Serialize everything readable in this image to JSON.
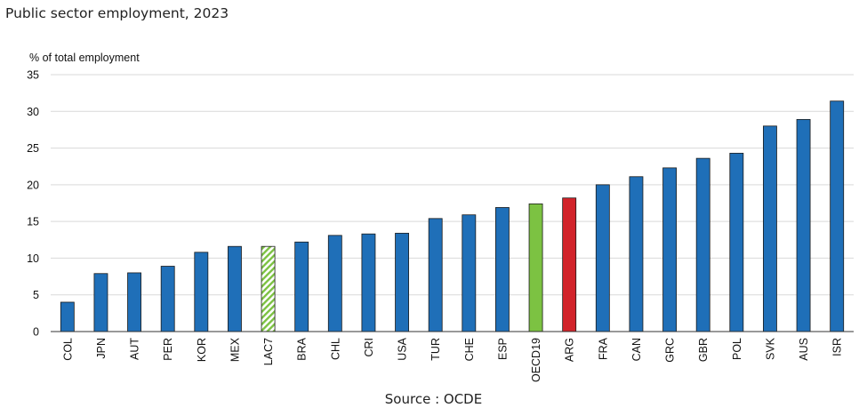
{
  "header": {
    "title": "Public sector employment, 2023"
  },
  "footer": {
    "source": "Source : OCDE"
  },
  "colors": {
    "default": "#1f6fb8",
    "oecd": "#7cc242",
    "argentina": "#d2232a",
    "lac_hatch": "#7cc242",
    "grid": "#d9d9d9"
  },
  "chart_data": {
    "type": "bar",
    "ylabel": "% of total employment",
    "ylim": [
      0,
      35
    ],
    "yticks": [
      0,
      5,
      10,
      15,
      20,
      25,
      30,
      35
    ],
    "grid": true,
    "categories": [
      "COL",
      "JPN",
      "AUT",
      "PER",
      "KOR",
      "MEX",
      "LAC7",
      "BRA",
      "CHL",
      "CRI",
      "USA",
      "TUR",
      "CHE",
      "ESP",
      "OECD19",
      "ARG",
      "FRA",
      "CAN",
      "GRC",
      "GBR",
      "POL",
      "SVK",
      "AUS",
      "ISR"
    ],
    "values": [
      4.0,
      7.9,
      8.0,
      8.9,
      10.8,
      11.6,
      11.6,
      12.2,
      13.1,
      13.3,
      13.4,
      15.4,
      15.9,
      16.9,
      17.4,
      18.2,
      20.0,
      21.1,
      22.3,
      23.6,
      24.3,
      28.0,
      28.9,
      31.4
    ],
    "highlight": {
      "LAC7": "hatched",
      "OECD19": "oecd",
      "ARG": "argentina"
    }
  }
}
